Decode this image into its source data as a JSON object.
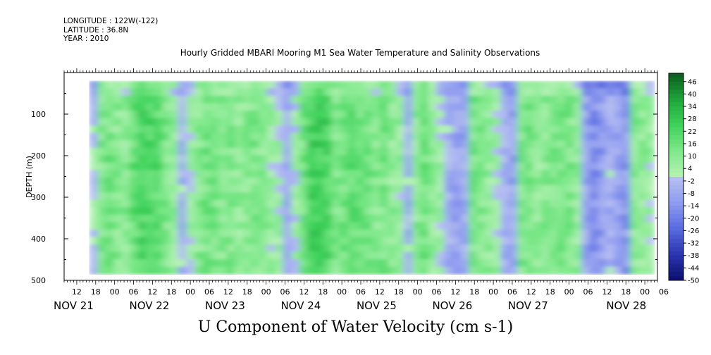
{
  "header": {
    "longitude": "LONGITUDE : 122W(-122)",
    "latitude": "LATITUDE : 36.8N",
    "year": "YEAR : 2010"
  },
  "chart_data": {
    "type": "heatmap",
    "title": "Hourly Gridded MBARI Mooring M1 Sea Water Temperature and Salinity Observations",
    "variable_title": "U Component of Water Velocity (cm s-1)",
    "ylabel": "DEPTH (m)",
    "ylim": [
      500,
      0
    ],
    "yticks": [
      100,
      200,
      300,
      400,
      500
    ],
    "x_hour_ticks": [
      "12",
      "18",
      "00",
      "06",
      "12",
      "18",
      "00",
      "06",
      "12",
      "18",
      "00",
      "06",
      "12",
      "18",
      "00",
      "06",
      "12",
      "18",
      "00",
      "06",
      "12",
      "18",
      "00",
      "06",
      "12",
      "18",
      "00",
      "06",
      "12",
      "18",
      "00",
      "06"
    ],
    "x_day_labels": [
      "NOV 21",
      "NOV 22",
      "NOV 23",
      "NOV 24",
      "NOV 25",
      "NOV 26",
      "NOV 27",
      "NOV 28"
    ],
    "colorbar_labels": [
      46,
      40,
      34,
      28,
      22,
      16,
      10,
      4,
      -2,
      -8,
      -14,
      -20,
      -26,
      -32,
      -38,
      -44,
      -50
    ],
    "colorbar_range": [
      -50,
      50
    ],
    "data_extent": {
      "x_start": "NOV 21 16:00",
      "x_end": "NOV 28 11:00",
      "depth_min": 20,
      "depth_max": 485
    },
    "grid": false,
    "colors": {
      "negative": [
        "#b8c0f2",
        "#8f9cf0",
        "#5a6ae0",
        "#2a35b0",
        "#0b0f6e"
      ],
      "positive": [
        "#b6f2b6",
        "#7ee88a",
        "#3fd25a",
        "#1ea43a",
        "#0a5a1f"
      ]
    },
    "column_means_cm_s": [
      -2,
      12,
      14,
      10,
      9,
      18,
      22,
      22,
      20,
      12,
      8,
      -6,
      4,
      10,
      14,
      12,
      10,
      12,
      8,
      10,
      12,
      10,
      6,
      4,
      -8,
      2,
      14,
      24,
      24,
      22,
      12,
      14,
      18,
      16,
      14,
      10,
      14,
      8,
      6,
      -6,
      10,
      16,
      8,
      4,
      -6,
      -10,
      -8,
      14,
      12,
      8,
      4,
      -6,
      -10,
      12,
      14,
      8,
      10,
      12,
      14,
      12,
      8,
      -10,
      -16,
      -12,
      -6,
      -10,
      -14,
      10,
      8,
      6
    ]
  }
}
